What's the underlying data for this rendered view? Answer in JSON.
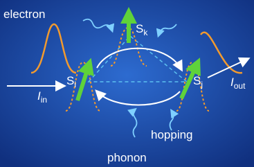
{
  "labels": {
    "electron": "electron",
    "hopping": "hopping",
    "phonon": "phonon"
  },
  "spins": [
    {
      "symbol": "S",
      "subscript": "k"
    },
    {
      "symbol": "S",
      "subscript": "i"
    },
    {
      "symbol": "S",
      "subscript": "j"
    }
  ],
  "currents": [
    {
      "symbol": "I",
      "subscript": "in"
    },
    {
      "symbol": "I",
      "subscript": "out"
    }
  ]
}
